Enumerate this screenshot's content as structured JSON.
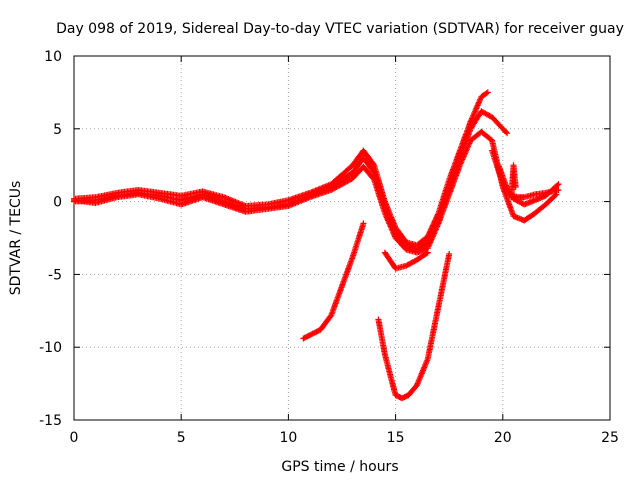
{
  "chart_data": {
    "type": "scatter",
    "title": "Day 098 of 2019, Sidereal Day-to-day VTEC variation (SDTVAR) for receiver guay",
    "xlabel": "GPS time / hours",
    "ylabel": "SDTVAR / TECUs",
    "xlim": [
      0,
      25
    ],
    "ylim": [
      -15,
      10
    ],
    "x_ticks": [
      0,
      5,
      10,
      15,
      20,
      25
    ],
    "x_tick_labels": [
      "0",
      "5",
      "10",
      "15",
      "20",
      "25"
    ],
    "y_ticks": [
      -15,
      -10,
      -5,
      0,
      5,
      10
    ],
    "y_tick_labels": [
      "-15",
      "-10",
      "-5",
      "0",
      "5",
      "10"
    ],
    "grid": true,
    "marker": "+",
    "series_color": "#ff0000",
    "series": [
      {
        "name": "main-trace-upper",
        "points": [
          [
            0,
            0.2
          ],
          [
            1,
            0.3
          ],
          [
            2,
            0.6
          ],
          [
            3,
            0.8
          ],
          [
            4,
            0.6
          ],
          [
            5,
            0.4
          ],
          [
            6,
            0.7
          ],
          [
            7,
            0.3
          ],
          [
            8,
            -0.3
          ],
          [
            9,
            -0.2
          ],
          [
            10,
            0.1
          ],
          [
            11,
            0.6
          ],
          [
            12,
            1.2
          ],
          [
            13,
            2.5
          ],
          [
            13.5,
            3.5
          ],
          [
            14,
            2.5
          ],
          [
            14.5,
            0
          ],
          [
            15,
            -1.8
          ],
          [
            15.5,
            -2.8
          ],
          [
            16,
            -3.0
          ],
          [
            16.5,
            -2.4
          ],
          [
            17,
            -0.8
          ],
          [
            17.5,
            1.5
          ],
          [
            18,
            3.5
          ],
          [
            18.5,
            5.5
          ],
          [
            19,
            7.2
          ],
          [
            19.3,
            7.5
          ]
        ]
      },
      {
        "name": "main-trace-mid",
        "points": [
          [
            0,
            0
          ],
          [
            1,
            0.1
          ],
          [
            2,
            0.4
          ],
          [
            3,
            0.6
          ],
          [
            4,
            0.4
          ],
          [
            5,
            0.1
          ],
          [
            6,
            0.5
          ],
          [
            7,
            0
          ],
          [
            8,
            -0.5
          ],
          [
            9,
            -0.4
          ],
          [
            10,
            -0.2
          ],
          [
            11,
            0.4
          ],
          [
            12,
            1.0
          ],
          [
            13,
            2.0
          ],
          [
            13.5,
            3.0
          ],
          [
            14,
            2.0
          ],
          [
            14.5,
            -0.3
          ],
          [
            15,
            -2.2
          ],
          [
            15.5,
            -3.0
          ],
          [
            16,
            -3.3
          ],
          [
            16.5,
            -2.8
          ],
          [
            17,
            -1.2
          ],
          [
            17.5,
            1.0
          ],
          [
            18,
            3.0
          ],
          [
            18.5,
            5.0
          ],
          [
            19,
            6.2
          ],
          [
            19.5,
            5.8
          ],
          [
            20,
            5.0
          ],
          [
            20.2,
            4.7
          ]
        ]
      },
      {
        "name": "main-trace-lower",
        "points": [
          [
            0,
            0.1
          ],
          [
            1,
            -0.1
          ],
          [
            2,
            0.3
          ],
          [
            3,
            0.5
          ],
          [
            4,
            0.2
          ],
          [
            5,
            -0.2
          ],
          [
            6,
            0.3
          ],
          [
            7,
            -0.2
          ],
          [
            8,
            -0.7
          ],
          [
            9,
            -0.5
          ],
          [
            10,
            -0.3
          ],
          [
            11,
            0.3
          ],
          [
            12,
            0.8
          ],
          [
            13,
            1.6
          ],
          [
            13.5,
            2.4
          ],
          [
            14,
            1.5
          ],
          [
            14.5,
            -0.8
          ],
          [
            15,
            -2.5
          ],
          [
            15.5,
            -3.3
          ],
          [
            16,
            -3.5
          ],
          [
            16.5,
            -3.2
          ],
          [
            17,
            -1.5
          ],
          [
            17.5,
            0.5
          ],
          [
            18,
            2.5
          ],
          [
            18.5,
            4.2
          ],
          [
            19,
            4.8
          ],
          [
            19.5,
            4.2
          ],
          [
            20,
            1.0
          ],
          [
            20.5,
            -1.0
          ],
          [
            21,
            -1.3
          ],
          [
            21.5,
            -0.8
          ],
          [
            22,
            -0.2
          ],
          [
            22.5,
            0.5
          ]
        ]
      },
      {
        "name": "late-branch-a",
        "points": [
          [
            19.5,
            3.5
          ],
          [
            20,
            1.2
          ],
          [
            20.5,
            0.2
          ],
          [
            21,
            -0.2
          ],
          [
            21.5,
            0.1
          ],
          [
            22,
            0.4
          ],
          [
            22.6,
            1.2
          ]
        ]
      },
      {
        "name": "late-branch-b",
        "points": [
          [
            19.8,
            2.5
          ],
          [
            20.3,
            0.5
          ],
          [
            20.7,
            0.3
          ],
          [
            21,
            0.3
          ],
          [
            21.5,
            0.5
          ],
          [
            22,
            0.6
          ],
          [
            22.6,
            0.8
          ]
        ]
      },
      {
        "name": "late-spike",
        "points": [
          [
            20.4,
            0.3
          ],
          [
            20.5,
            2.5
          ],
          [
            20.6,
            1.0
          ]
        ]
      },
      {
        "name": "dip-short",
        "points": [
          [
            14.5,
            -3.5
          ],
          [
            15,
            -4.6
          ],
          [
            15.5,
            -4.4
          ],
          [
            16,
            -4.0
          ],
          [
            16.5,
            -3.5
          ]
        ]
      },
      {
        "name": "rising-track",
        "points": [
          [
            10.7,
            -9.4
          ],
          [
            11.5,
            -8.8
          ],
          [
            12,
            -7.8
          ],
          [
            12.5,
            -5.8
          ],
          [
            13,
            -3.8
          ],
          [
            13.5,
            -1.5
          ]
        ]
      },
      {
        "name": "deep-dip",
        "points": [
          [
            14.2,
            -8.1
          ],
          [
            14.5,
            -10.5
          ],
          [
            14.8,
            -12.2
          ],
          [
            15,
            -13.3
          ],
          [
            15.3,
            -13.5
          ],
          [
            15.6,
            -13.3
          ],
          [
            16,
            -12.6
          ],
          [
            16.5,
            -10.8
          ],
          [
            17,
            -7.2
          ],
          [
            17.5,
            -3.6
          ]
        ]
      }
    ]
  }
}
